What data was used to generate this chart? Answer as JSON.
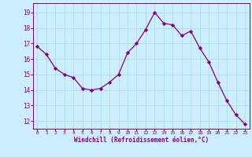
{
  "x": [
    0,
    1,
    2,
    3,
    4,
    5,
    6,
    7,
    8,
    9,
    10,
    11,
    12,
    13,
    14,
    15,
    16,
    17,
    18,
    19,
    20,
    21,
    22,
    23
  ],
  "y": [
    16.8,
    16.3,
    15.4,
    15.0,
    14.8,
    14.1,
    14.0,
    14.1,
    14.5,
    15.0,
    16.4,
    17.0,
    17.9,
    19.0,
    18.3,
    18.2,
    17.5,
    17.8,
    16.7,
    15.8,
    14.5,
    13.3,
    12.4,
    11.8
  ],
  "line_color": "#800080",
  "marker": "D",
  "marker_size": 2.2,
  "bg_color": "#cceeff",
  "grid_color": "#aadddd",
  "xlabel": "Windchill (Refroidissement éolien,°C)",
  "xlabel_color": "#800080",
  "yticks": [
    12,
    13,
    14,
    15,
    16,
    17,
    18,
    19
  ],
  "xticks": [
    0,
    1,
    2,
    3,
    4,
    5,
    6,
    7,
    8,
    9,
    10,
    11,
    12,
    13,
    14,
    15,
    16,
    17,
    18,
    19,
    20,
    21,
    22,
    23
  ],
  "ylim": [
    11.5,
    19.6
  ],
  "xlim": [
    -0.5,
    23.5
  ]
}
